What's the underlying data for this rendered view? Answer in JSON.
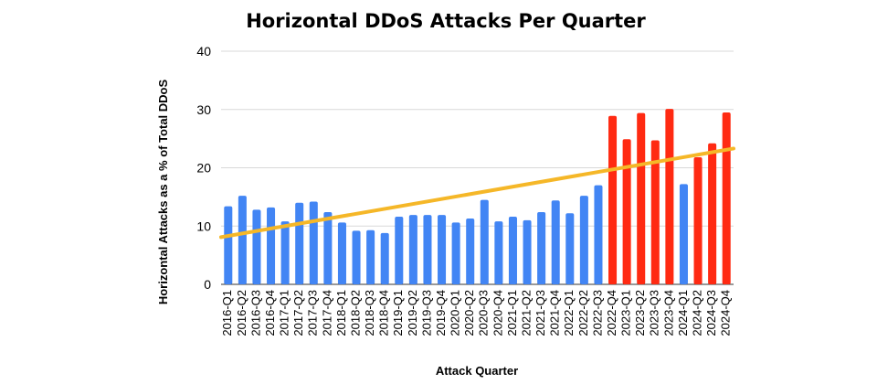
{
  "chart_data": {
    "type": "bar",
    "title": "Horizontal DDoS Attacks Per Quarter",
    "xlabel": "Attack Quarter",
    "ylabel": "Horizontal Attacks as a % of Total DDoS",
    "ylim": [
      0,
      40
    ],
    "yticks": [
      "0",
      "10",
      "20",
      "30",
      "40"
    ],
    "grid": true,
    "categories": [
      "2016-Q1",
      "2016-Q2",
      "2016-Q3",
      "2016-Q4",
      "2017-Q1",
      "2017-Q2",
      "2017-Q3",
      "2017-Q4",
      "2018-Q1",
      "2018-Q2",
      "2018-Q3",
      "2018-Q4",
      "2019-Q1",
      "2019-Q2",
      "2019-Q3",
      "2019-Q4",
      "2020-Q1",
      "2020-Q2",
      "2020-Q3",
      "2020-Q4",
      "2021-Q1",
      "2021-Q2",
      "2021-Q3",
      "2021-Q4",
      "2022-Q1",
      "2022-Q2",
      "2022-Q3",
      "2022-Q4",
      "2023-Q1",
      "2023-Q2",
      "2023-Q3",
      "2023-Q4",
      "2024-Q1",
      "2024-Q2",
      "2024-Q3",
      "2024-Q4"
    ],
    "values": [
      13.4,
      15.2,
      12.8,
      13.2,
      10.8,
      14.0,
      14.2,
      12.4,
      10.6,
      9.2,
      9.3,
      8.8,
      11.6,
      11.9,
      11.9,
      11.9,
      10.6,
      11.3,
      14.5,
      10.8,
      11.6,
      11.0,
      12.4,
      14.4,
      12.2,
      15.2,
      17.0,
      28.9,
      24.9,
      29.4,
      24.7,
      30.1,
      17.2,
      21.8,
      24.2,
      29.5
    ],
    "bar_colors": [
      "#4285F4",
      "#4285F4",
      "#4285F4",
      "#4285F4",
      "#4285F4",
      "#4285F4",
      "#4285F4",
      "#4285F4",
      "#4285F4",
      "#4285F4",
      "#4285F4",
      "#4285F4",
      "#4285F4",
      "#4285F4",
      "#4285F4",
      "#4285F4",
      "#4285F4",
      "#4285F4",
      "#4285F4",
      "#4285F4",
      "#4285F4",
      "#4285F4",
      "#4285F4",
      "#4285F4",
      "#4285F4",
      "#4285F4",
      "#4285F4",
      "#FF2A12",
      "#FF2A12",
      "#FF2A12",
      "#FF2A12",
      "#FF2A12",
      "#4285F4",
      "#FF2A12",
      "#FF2A12",
      "#FF2A12"
    ],
    "trendline": {
      "start": 8.1,
      "end": 23.3,
      "color": "#F5B728"
    },
    "colors": {
      "normal": "#4285F4",
      "highlight": "#FF2A12",
      "trend": "#F5B728"
    }
  }
}
